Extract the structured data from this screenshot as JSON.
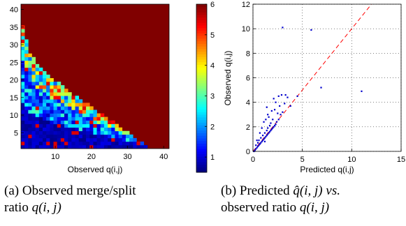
{
  "chart_data": [
    {
      "type": "heatmap",
      "xlabel": "Observed q(i,j)",
      "ylabel": "",
      "x_ticks": [
        "10",
        "20",
        "30",
        "40"
      ],
      "y_ticks": [
        "5",
        "10",
        "15",
        "20",
        "25",
        "30",
        "35",
        "40"
      ],
      "xlim": [
        0.5,
        41.5
      ],
      "ylim": [
        0.5,
        41.5
      ],
      "colorbar": {
        "ticks": [
          "1",
          "2",
          "3",
          "4",
          "5",
          "6"
        ],
        "range": [
          0.5,
          6
        ],
        "colormap": "jet"
      },
      "background_value": 6,
      "colors": {
        "background": "#800000"
      },
      "caption": {
        "label": "(a)",
        "text_line1": "Observed merge/split",
        "text_line2": "ratio",
        "symbol": "q(i, j)"
      }
    },
    {
      "type": "scatter",
      "xlabel": "Predicted q(i,j)",
      "ylabel": "Observed q(i,j)",
      "x_ticks": [
        "0",
        "5",
        "10",
        "15"
      ],
      "y_ticks": [
        "0",
        "2",
        "4",
        "6",
        "8",
        "10",
        "12"
      ],
      "xlim": [
        0,
        15
      ],
      "ylim": [
        0,
        12
      ],
      "grid": true,
      "reference_line": {
        "style": "dashed",
        "color": "#ff0000",
        "slope": 1
      },
      "points": [
        [
          0.2,
          0.1
        ],
        [
          0.3,
          0.2
        ],
        [
          0.4,
          0.3
        ],
        [
          0.5,
          0.4
        ],
        [
          0.3,
          0.5
        ],
        [
          0.6,
          0.5
        ],
        [
          0.7,
          0.6
        ],
        [
          0.5,
          0.7
        ],
        [
          0.8,
          0.7
        ],
        [
          0.9,
          0.8
        ],
        [
          0.6,
          0.9
        ],
        [
          1.0,
          0.9
        ],
        [
          1.1,
          1.0
        ],
        [
          0.8,
          1.1
        ],
        [
          1.2,
          1.1
        ],
        [
          1.3,
          1.2
        ],
        [
          1.0,
          1.3
        ],
        [
          1.4,
          1.3
        ],
        [
          1.5,
          1.4
        ],
        [
          1.2,
          1.5
        ],
        [
          1.6,
          1.5
        ],
        [
          1.7,
          1.6
        ],
        [
          1.4,
          1.7
        ],
        [
          1.8,
          1.7
        ],
        [
          1.9,
          1.8
        ],
        [
          1.5,
          1.9
        ],
        [
          2.0,
          1.9
        ],
        [
          2.1,
          2.0
        ],
        [
          1.7,
          2.1
        ],
        [
          2.2,
          2.1
        ],
        [
          1.8,
          2.3
        ],
        [
          2.3,
          2.2
        ],
        [
          1.1,
          2.4
        ],
        [
          2.4,
          2.4
        ],
        [
          1.3,
          2.6
        ],
        [
          2.0,
          2.6
        ],
        [
          1.6,
          2.8
        ],
        [
          2.6,
          2.6
        ],
        [
          1.5,
          3.0
        ],
        [
          2.5,
          3.1
        ],
        [
          2.8,
          3.0
        ],
        [
          1.9,
          3.3
        ],
        [
          2.2,
          3.4
        ],
        [
          3.0,
          3.2
        ],
        [
          1.4,
          3.6
        ],
        [
          2.7,
          3.7
        ],
        [
          2.3,
          4.0
        ],
        [
          3.2,
          3.9
        ],
        [
          2.1,
          4.3
        ],
        [
          2.6,
          4.5
        ],
        [
          3.5,
          4.4
        ],
        [
          3.3,
          4.6
        ],
        [
          2.9,
          4.6
        ],
        [
          4.5,
          4.5
        ],
        [
          3.8,
          3.7
        ],
        [
          0.9,
          1.9
        ],
        [
          0.7,
          1.5
        ],
        [
          1.2,
          0.8
        ],
        [
          0.4,
          0.9
        ],
        [
          6.9,
          5.2
        ],
        [
          11.0,
          4.9
        ],
        [
          3.0,
          10.1
        ],
        [
          5.9,
          9.9
        ],
        [
          0.1,
          0.0
        ]
      ],
      "colors": {
        "points": "#0000cc"
      },
      "caption": {
        "label": "(b)",
        "text_line1a": "Predicted",
        "symbol_hat": "q̂(i, j)",
        "text_line1b": "vs.",
        "text_line2": "observed ratio",
        "symbol": "q(i, j)"
      }
    }
  ]
}
